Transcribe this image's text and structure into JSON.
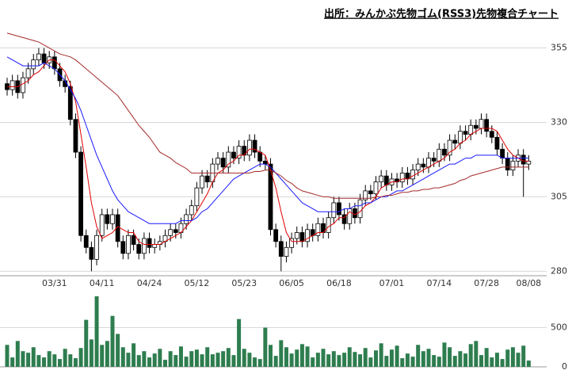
{
  "chart_data": [
    {
      "type": "candlestick",
      "title": "出所：みんかぶ先物ゴム(RSS3)先物複合チャート",
      "categories": [
        null,
        null,
        null,
        null,
        null,
        null,
        null,
        null,
        null,
        "03/31",
        null,
        null,
        null,
        null,
        null,
        null,
        null,
        null,
        "04/11",
        null,
        null,
        null,
        null,
        null,
        null,
        null,
        null,
        "04/24",
        null,
        null,
        null,
        null,
        null,
        null,
        null,
        null,
        "05/12",
        null,
        null,
        null,
        null,
        null,
        null,
        null,
        null,
        "05/23",
        null,
        null,
        null,
        null,
        null,
        null,
        null,
        null,
        "06/05",
        null,
        null,
        null,
        null,
        null,
        null,
        null,
        null,
        "06/18",
        null,
        null,
        null,
        null,
        null,
        null,
        null,
        null,
        null,
        "07/01",
        null,
        null,
        null,
        null,
        null,
        null,
        null,
        null,
        "07/14",
        null,
        null,
        null,
        null,
        null,
        null,
        null,
        null,
        "07/28",
        null,
        null,
        null,
        null,
        null,
        null,
        null,
        "08/08"
      ],
      "open": [
        343,
        341,
        344,
        340,
        345,
        348,
        351,
        353,
        350,
        352,
        348,
        344,
        342,
        331,
        320,
        292,
        288,
        284,
        292,
        299,
        296,
        299,
        290,
        286,
        292,
        289,
        286,
        291,
        288,
        289,
        290,
        292,
        294,
        293,
        296,
        299,
        302,
        308,
        312,
        310,
        316,
        318,
        315,
        320,
        318,
        322,
        319,
        324,
        320,
        317,
        316,
        294,
        290,
        285,
        288,
        291,
        293,
        290,
        294,
        292,
        296,
        293,
        298,
        303,
        299,
        296,
        301,
        298,
        304,
        307,
        306,
        310,
        312,
        309,
        311,
        310,
        313,
        311,
        314,
        316,
        315,
        318,
        317,
        321,
        319,
        324,
        323,
        327,
        326,
        329,
        328,
        331,
        327,
        325,
        321,
        318,
        314,
        317,
        319,
        316
      ],
      "high": [
        345,
        346,
        346,
        347,
        350,
        353,
        355,
        355,
        354,
        354,
        350,
        346,
        344,
        333,
        322,
        294,
        290,
        294,
        301,
        301,
        301,
        301,
        292,
        294,
        294,
        291,
        293,
        293,
        291,
        292,
        294,
        296,
        296,
        298,
        301,
        304,
        310,
        314,
        314,
        318,
        320,
        320,
        322,
        322,
        324,
        324,
        326,
        326,
        322,
        319,
        318,
        296,
        292,
        290,
        293,
        295,
        295,
        296,
        296,
        298,
        298,
        300,
        305,
        305,
        301,
        303,
        303,
        306,
        309,
        309,
        312,
        314,
        314,
        313,
        313,
        315,
        315,
        316,
        318,
        318,
        320,
        320,
        323,
        323,
        326,
        326,
        329,
        329,
        331,
        331,
        333,
        333,
        329,
        327,
        323,
        320,
        319,
        321,
        321,
        319
      ],
      "low": [
        339,
        339,
        338,
        338,
        343,
        346,
        349,
        348,
        348,
        346,
        342,
        340,
        329,
        318,
        290,
        286,
        280,
        282,
        290,
        294,
        294,
        288,
        284,
        284,
        287,
        284,
        284,
        286,
        286,
        287,
        288,
        290,
        291,
        291,
        294,
        297,
        300,
        306,
        308,
        308,
        314,
        313,
        313,
        316,
        316,
        317,
        317,
        318,
        315,
        314,
        292,
        288,
        280,
        283,
        286,
        289,
        288,
        288,
        290,
        290,
        291,
        291,
        296,
        297,
        294,
        294,
        296,
        296,
        302,
        304,
        304,
        308,
        307,
        307,
        308,
        308,
        309,
        309,
        312,
        313,
        313,
        315,
        315,
        317,
        317,
        321,
        321,
        324,
        324,
        326,
        326,
        325,
        323,
        319,
        316,
        312,
        312,
        315,
        305,
        314
      ],
      "close": [
        341,
        344,
        340,
        345,
        348,
        351,
        353,
        350,
        352,
        348,
        344,
        342,
        331,
        320,
        292,
        288,
        284,
        292,
        299,
        296,
        299,
        290,
        286,
        292,
        289,
        286,
        291,
        288,
        289,
        290,
        292,
        294,
        293,
        296,
        299,
        302,
        308,
        312,
        310,
        316,
        318,
        315,
        320,
        318,
        322,
        319,
        324,
        320,
        317,
        316,
        294,
        290,
        285,
        288,
        291,
        293,
        290,
        294,
        292,
        296,
        293,
        298,
        303,
        299,
        296,
        301,
        298,
        304,
        307,
        306,
        310,
        312,
        309,
        311,
        310,
        313,
        311,
        314,
        316,
        315,
        318,
        317,
        321,
        319,
        324,
        323,
        327,
        326,
        329,
        328,
        331,
        327,
        325,
        321,
        318,
        314,
        317,
        319,
        316,
        317
      ],
      "up_color": "#ffffff",
      "down_color": "#000000",
      "lines": [
        {
          "color": "#e00000",
          "values": [
            342,
            342,
            342,
            343,
            344,
            346,
            347,
            349,
            351,
            351,
            349,
            347,
            343,
            337,
            326,
            315,
            303,
            295,
            291,
            292,
            293,
            295,
            294,
            293,
            293,
            290,
            289,
            289,
            289,
            289,
            290,
            291,
            292,
            293,
            295,
            297,
            300,
            303,
            306,
            310,
            313,
            314,
            316,
            317,
            319,
            319,
            321,
            321,
            320,
            319,
            314,
            308,
            300,
            293,
            290,
            290,
            290,
            291,
            292,
            293,
            293,
            295,
            296,
            298,
            298,
            300,
            299,
            300,
            302,
            303,
            305,
            308,
            309,
            310,
            310,
            311,
            311,
            312,
            313,
            314,
            315,
            316,
            317,
            318,
            320,
            321,
            323,
            324,
            326,
            327,
            328,
            328,
            328,
            327,
            324,
            321,
            319,
            318,
            317,
            317
          ]
        },
        {
          "color": "#1a1aff",
          "values": [
            352,
            351,
            350,
            349,
            349,
            349,
            349,
            350,
            349,
            348,
            346,
            344,
            341,
            338,
            334,
            329,
            324,
            319,
            315,
            311,
            307,
            304,
            302,
            300,
            299,
            298,
            297,
            296,
            296,
            296,
            296,
            296,
            296,
            297,
            297,
            297,
            298,
            300,
            301,
            303,
            305,
            307,
            309,
            311,
            312,
            313,
            314,
            315,
            316,
            316,
            315,
            313,
            311,
            309,
            307,
            305,
            303,
            302,
            301,
            300,
            300,
            300,
            300,
            300,
            301,
            301,
            302,
            302,
            303,
            303,
            304,
            305,
            305,
            306,
            307,
            307,
            308,
            309,
            310,
            311,
            312,
            313,
            314,
            315,
            316,
            316,
            317,
            318,
            318,
            319,
            319,
            319,
            319,
            319,
            318,
            318,
            318,
            318,
            318,
            318
          ]
        },
        {
          "color": "#a52a2a",
          "values": [
            360,
            359.5,
            359,
            358.5,
            358,
            357.5,
            357,
            356,
            355,
            354,
            353,
            352.5,
            352,
            351,
            349.5,
            348,
            346.5,
            345,
            343.5,
            342,
            340.5,
            339,
            336.5,
            334,
            331.5,
            329,
            327,
            325,
            322.5,
            320,
            319,
            318,
            316.5,
            315.5,
            314.5,
            313,
            313,
            313,
            313,
            313,
            313,
            313,
            313,
            313,
            313,
            313,
            313,
            313.5,
            313.5,
            314,
            314,
            313,
            312,
            310.5,
            309.5,
            308,
            307,
            306.5,
            306,
            305.5,
            305,
            305,
            304.5,
            304.5,
            304.5,
            304.5,
            304.5,
            304.5,
            304.5,
            304.5,
            305,
            305,
            305.5,
            305.5,
            306,
            306.5,
            306.5,
            307,
            307,
            307.5,
            307.5,
            308,
            308,
            308.5,
            309,
            309.5,
            310.5,
            311,
            312,
            312.5,
            313,
            313.5,
            314,
            314.5,
            315,
            315,
            315,
            315,
            315,
            315
          ]
        }
      ],
      "ylim": [
        278.5,
        361
      ],
      "yticks": [
        280,
        305,
        330,
        355
      ],
      "grid": true
    },
    {
      "type": "bar",
      "color": "#2e7d4f",
      "values": [
        280,
        120,
        330,
        200,
        180,
        250,
        150,
        120,
        200,
        160,
        100,
        230,
        160,
        110,
        240,
        600,
        350,
        900,
        280,
        330,
        650,
        420,
        250,
        180,
        300,
        150,
        200,
        120,
        170,
        230,
        90,
        200,
        150,
        260,
        130,
        200,
        220,
        160,
        250,
        160,
        180,
        200,
        240,
        150,
        610,
        230,
        180,
        120,
        100,
        500,
        280,
        140,
        340,
        250,
        170,
        220,
        290,
        260,
        120,
        180,
        230,
        160,
        200,
        150,
        180,
        250,
        190,
        160,
        240,
        120,
        210,
        300,
        140,
        220,
        270,
        110,
        170,
        130,
        280,
        200,
        230,
        150,
        130,
        310,
        250,
        140,
        200,
        170,
        290,
        330,
        150,
        240,
        120,
        180,
        100,
        220,
        250,
        180,
        270,
        80
      ],
      "ylim": [
        0,
        920
      ],
      "yticks": [
        0,
        500
      ]
    }
  ]
}
